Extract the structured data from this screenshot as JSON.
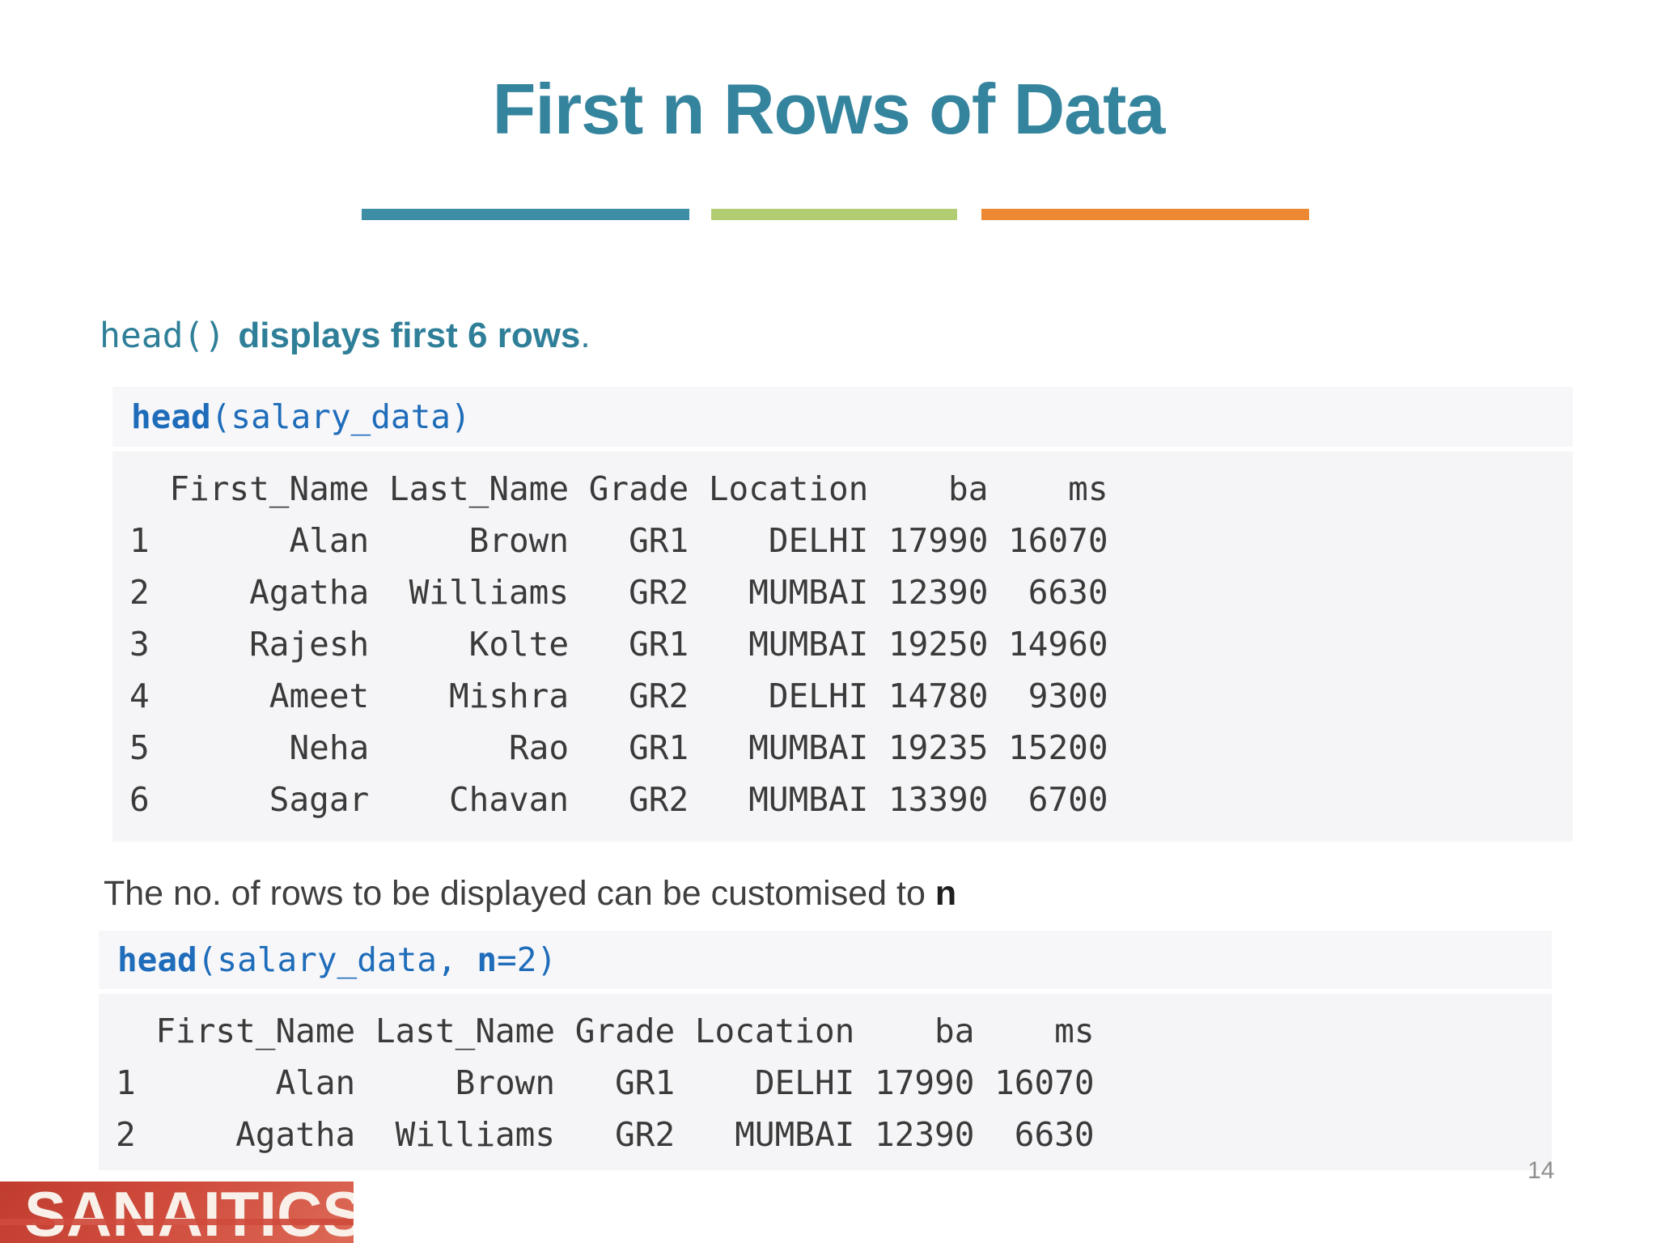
{
  "slide": {
    "title": "First n Rows of Data",
    "colors": {
      "title_teal": "#35849e",
      "bar_teal": "#3d8da4",
      "bar_green": "#b1cc71",
      "bar_orange": "#ee8933",
      "code_blue": "#1e6cba",
      "output_text": "#3a3a3a",
      "block_background": "#f5f5f7",
      "logo_red": "#cf4b3c"
    },
    "lede": {
      "code": "head()",
      "text": "displays first 6 rows",
      "period": "."
    },
    "block1": {
      "cmd": {
        "fn": "head",
        "args": "(salary_data)"
      },
      "out": [
        "  First_Name Last_Name Grade Location    ba    ms",
        "1       Alan     Brown   GR1    DELHI 17990 16070",
        "2     Agatha  Williams   GR2   MUMBAI 12390  6630",
        "3     Rajesh     Kolte   GR1   MUMBAI 19250 14960",
        "4      Ameet    Mishra   GR2    DELHI 14780  9300",
        "5       Neha       Rao   GR1   MUMBAI 19235 15200",
        "6      Sagar    Chavan   GR2   MUMBAI 13390  6700"
      ]
    },
    "note": {
      "text": "The no. of rows to be displayed can be customised to ",
      "emph": "n"
    },
    "block2": {
      "cmd": {
        "fn": "head",
        "mid": "(salary_data, ",
        "n": "n",
        "end": "=2)"
      },
      "out": [
        "  First_Name Last_Name Grade Location    ba    ms",
        "1       Alan     Brown   GR1    DELHI 17990 16070",
        "2     Agatha  Williams   GR2   MUMBAI 12390  6630"
      ]
    },
    "salary_table": {
      "columns": [
        "First_Name",
        "Last_Name",
        "Grade",
        "Location",
        "ba",
        "ms"
      ],
      "rows": [
        [
          "Alan",
          "Brown",
          "GR1",
          "DELHI",
          17990,
          16070
        ],
        [
          "Agatha",
          "Williams",
          "GR2",
          "MUMBAI",
          12390,
          6630
        ],
        [
          "Rajesh",
          "Kolte",
          "GR1",
          "MUMBAI",
          19250,
          14960
        ],
        [
          "Ameet",
          "Mishra",
          "GR2",
          "DELHI",
          14780,
          9300
        ],
        [
          "Neha",
          "Rao",
          "GR1",
          "MUMBAI",
          19235,
          15200
        ],
        [
          "Sagar",
          "Chavan",
          "GR2",
          "MUMBAI",
          13390,
          6700
        ]
      ]
    },
    "page_number": "14",
    "logo": {
      "text": "SANAITICS"
    }
  }
}
